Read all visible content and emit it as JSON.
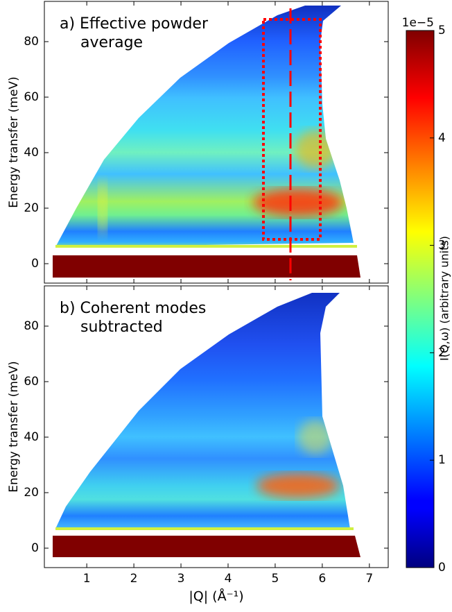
{
  "chart_data": [
    {
      "type": "heatmap",
      "annotation": [
        "a) Effective powder",
        "average"
      ],
      "ylabel": "Energy transfer (meV)",
      "xlim": [
        0.1,
        7.4
      ],
      "xticks": [
        1,
        2,
        3,
        4,
        5,
        6,
        7
      ],
      "show_xticklabels": false,
      "ylim": [
        -7,
        94.5
      ],
      "yticks": [
        0,
        20,
        40,
        60,
        80
      ]
    },
    {
      "type": "heatmap",
      "annotation": [
        "b) Coherent modes",
        "subtracted"
      ],
      "ylabel": "Energy transfer (meV)",
      "xlabel": "|Q| (Å⁻¹)",
      "xlim": [
        0.1,
        7.4
      ],
      "xticks": [
        1,
        2,
        3,
        4,
        5,
        6,
        7
      ],
      "show_xticklabels": true,
      "ylim": [
        -7,
        94.5
      ],
      "yticks": [
        0,
        20,
        40,
        60,
        80
      ]
    }
  ],
  "colorbar": {
    "clim": [
      0,
      5
    ],
    "ticks": [
      0,
      1,
      2,
      3,
      4,
      5
    ],
    "offset_label": "1e−5",
    "label": "I(Q,ω) (arbitrary units)"
  }
}
